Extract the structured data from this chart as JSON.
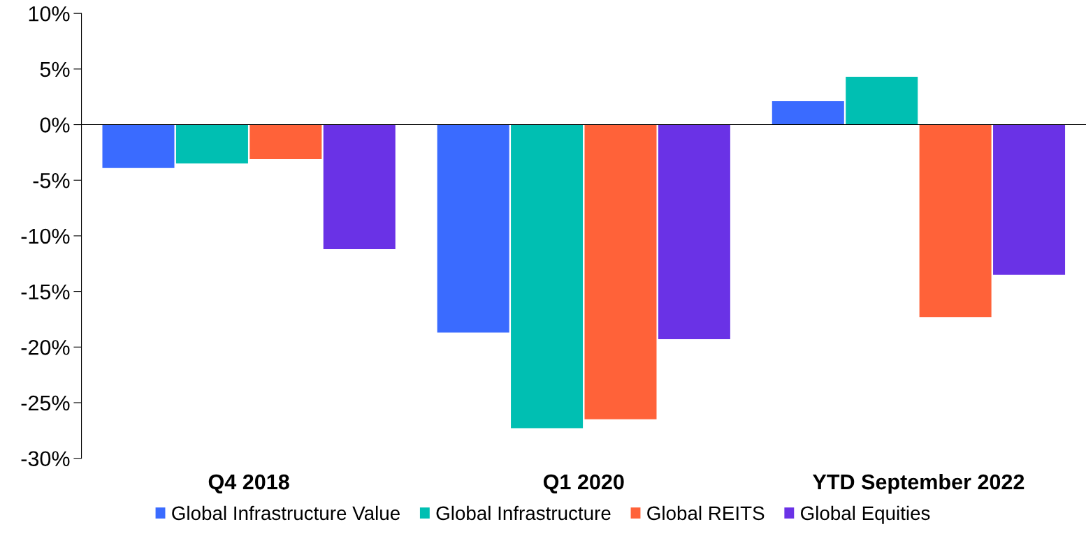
{
  "chart_data": {
    "type": "bar",
    "categories": [
      "Q4 2018",
      "Q1 2020",
      "YTD September 2022"
    ],
    "series": [
      {
        "name": "Global Infrastructure Value",
        "color": "#3a6bff",
        "values": [
          -3.9,
          -18.7,
          2.1
        ]
      },
      {
        "name": "Global Infrastructure",
        "color": "#00bfb2",
        "values": [
          -3.5,
          -27.3,
          4.3
        ]
      },
      {
        "name": "Global REITS",
        "color": "#ff6239",
        "values": [
          -3.1,
          -26.5,
          -17.3
        ]
      },
      {
        "name": "Global Equities",
        "color": "#6a32e6",
        "values": [
          -11.2,
          -19.3,
          -13.5
        ]
      }
    ],
    "ylim": [
      -30,
      10
    ],
    "yticks": [
      {
        "value": -30,
        "label": "-30%"
      },
      {
        "value": -25,
        "label": "-25%"
      },
      {
        "value": -20,
        "label": "-20%"
      },
      {
        "value": -15,
        "label": "-15%"
      },
      {
        "value": -10,
        "label": "-10%"
      },
      {
        "value": -5,
        "label": "-5%"
      },
      {
        "value": 0,
        "label": "0%"
      },
      {
        "value": 5,
        "label": "5%"
      },
      {
        "value": 10,
        "label": "10%"
      }
    ],
    "legend": "bottom"
  }
}
